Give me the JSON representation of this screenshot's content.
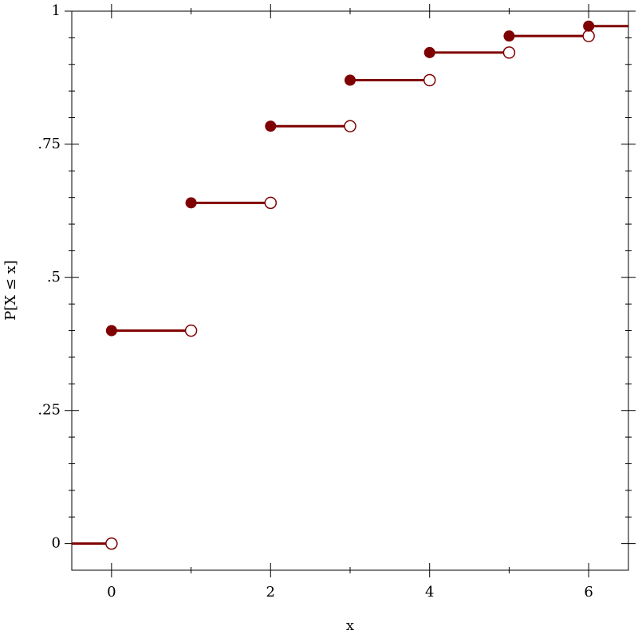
{
  "chart_data": {
    "type": "step",
    "x_label": "x",
    "y_label": "P[X ≤ x]",
    "x": [
      0,
      1,
      2,
      3,
      4,
      5,
      6
    ],
    "initial_value": 0,
    "values": [
      0.4,
      0.64,
      0.784,
      0.8704,
      0.92224,
      0.953344,
      0.972
    ],
    "color": "#7f0000",
    "xlim": [
      -0.5,
      6.5
    ],
    "ylim": [
      -0.05,
      1
    ],
    "xticks": [
      0,
      2,
      4,
      6
    ],
    "xminorticks": [
      1,
      3,
      5
    ],
    "yticks": [
      0,
      {
        "value": 0.25,
        "label": ".25"
      },
      {
        "value": 0.5,
        "label": ".5"
      },
      {
        "value": 0.75,
        "label": ".75"
      },
      1
    ],
    "yminorticks": [
      0.05,
      0.1,
      0.15,
      0.2,
      0.3,
      0.35,
      0.4,
      0.45,
      0.55,
      0.6,
      0.65,
      0.7,
      0.8,
      0.85,
      0.9,
      0.95
    ]
  }
}
